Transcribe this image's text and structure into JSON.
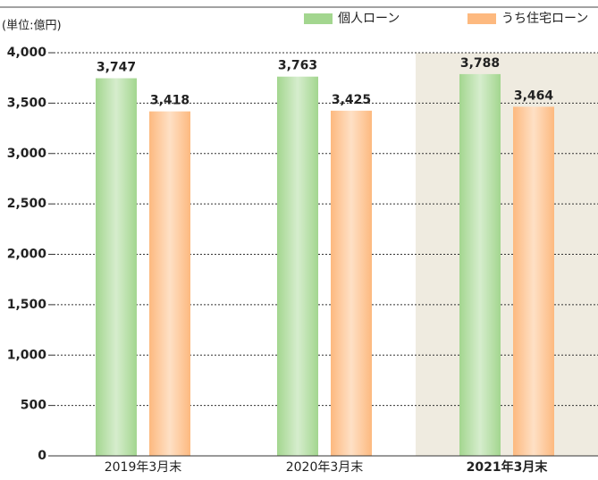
{
  "chart_data": {
    "type": "bar",
    "unit_label": "(単位:億円)",
    "categories": [
      "2019年3月末",
      "2020年3月末",
      "2021年3月末"
    ],
    "series": [
      {
        "name": "個人ローン",
        "color": "#a3d68f",
        "values": [
          3747,
          3763,
          3788
        ],
        "value_labels": [
          "3,747",
          "3,763",
          "3,788"
        ]
      },
      {
        "name": "うち住宅ローン",
        "color": "#fdb97f",
        "values": [
          3418,
          3425,
          3464
        ],
        "value_labels": [
          "3,418",
          "3,425",
          "3,464"
        ]
      }
    ],
    "ylim": [
      0,
      4000
    ],
    "yticks": [
      0,
      500,
      {
        "value": 1000,
        "label": "1,000"
      },
      {
        "value": 1500,
        "label": "1,500"
      },
      {
        "value": 2000,
        "label": "2,000"
      },
      {
        "value": 2500,
        "label": "2,500"
      },
      {
        "value": 3000,
        "label": "3,000"
      },
      {
        "value": 3500,
        "label": "3,500"
      },
      {
        "value": 4000,
        "label": "4,000"
      }
    ],
    "grid": true,
    "highlight_index": 2
  }
}
